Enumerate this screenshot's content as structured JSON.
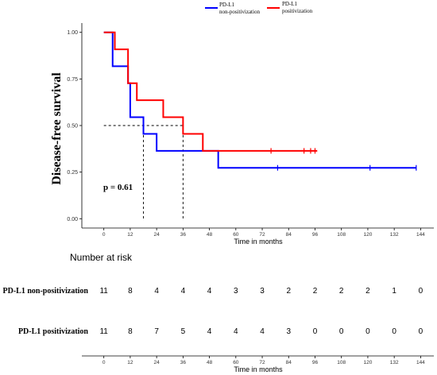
{
  "chart_data": [
    {
      "type": "line",
      "subtype": "kaplan-meier step",
      "title": "",
      "xlabel": "Time in months",
      "ylabel": "Disease-free survival",
      "xlim": [
        -10,
        150
      ],
      "ylim": [
        -0.05,
        1.05
      ],
      "x_ticks": [
        0,
        12,
        24,
        36,
        48,
        60,
        72,
        84,
        96,
        108,
        120,
        132,
        144
      ],
      "y_ticks": [
        0.0,
        0.25,
        0.5,
        0.75,
        1.0
      ],
      "y_tick_labels": [
        "0.00",
        "0.25",
        "0.50",
        "0.75",
        "1.00"
      ],
      "grid": false,
      "legend_position": "top",
      "annotation": "p = 0.61",
      "median_survival": [
        {
          "series": "PD-L1 non-positivization",
          "months": 18
        },
        {
          "series": "PD-L1 positivization",
          "months": 36
        }
      ],
      "series": [
        {
          "name": "PD-L1 non-positivization",
          "color": "#0000ff",
          "step_points": [
            [
              0,
              1.0
            ],
            [
              4,
              1.0
            ],
            [
              4,
              0.818
            ],
            [
              11,
              0.818
            ],
            [
              11,
              0.727
            ],
            [
              12,
              0.727
            ],
            [
              12,
              0.545
            ],
            [
              18,
              0.545
            ],
            [
              18,
              0.455
            ],
            [
              24,
              0.455
            ],
            [
              24,
              0.364
            ],
            [
              52,
              0.364
            ],
            [
              52,
              0.273
            ],
            [
              142,
              0.273
            ]
          ],
          "censor_times": [
            79,
            121,
            142
          ],
          "censor_values": [
            0.273,
            0.273,
            0.273
          ]
        },
        {
          "name": "PD-L1 positivization",
          "color": "#ff0000",
          "step_points": [
            [
              0,
              1.0
            ],
            [
              5,
              1.0
            ],
            [
              5,
              0.909
            ],
            [
              11,
              0.909
            ],
            [
              11,
              0.727
            ],
            [
              15,
              0.727
            ],
            [
              15,
              0.636
            ],
            [
              27,
              0.636
            ],
            [
              27,
              0.545
            ],
            [
              36,
              0.545
            ],
            [
              36,
              0.455
            ],
            [
              45,
              0.455
            ],
            [
              45,
              0.364
            ],
            [
              97,
              0.364
            ]
          ],
          "censor_times": [
            76,
            91,
            94,
            96
          ],
          "censor_values": [
            0.364,
            0.364,
            0.364,
            0.364
          ]
        }
      ]
    },
    {
      "type": "table",
      "title": "Number at risk",
      "xlabel": "Time in months",
      "x_ticks": [
        0,
        12,
        24,
        36,
        48,
        60,
        72,
        84,
        96,
        108,
        120,
        132,
        144
      ],
      "rows": [
        {
          "label": "PD-L1 non-positivization",
          "values": [
            11,
            8,
            4,
            4,
            4,
            3,
            3,
            2,
            2,
            2,
            2,
            1,
            0
          ]
        },
        {
          "label": "PD-L1 positivization",
          "values": [
            11,
            8,
            7,
            5,
            4,
            4,
            4,
            3,
            0,
            0,
            0,
            0,
            0
          ]
        }
      ]
    }
  ],
  "legend": [
    {
      "line1": "PD-L1",
      "line2": "non-positivization",
      "color": "#0000ff"
    },
    {
      "line1": "PD-L1",
      "line2": "positivization",
      "color": "#ff0000"
    }
  ]
}
